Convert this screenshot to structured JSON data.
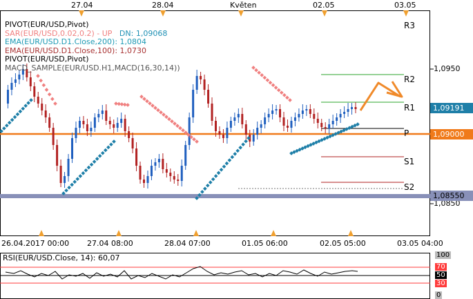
{
  "top_dates": [
    "27.04",
    "28.04",
    "Květen",
    "02.05",
    "03.05"
  ],
  "bottom_dates": [
    "26.04.2017 00:00",
    "27.04 08:00",
    "28.04 07:00",
    "01.05 06:00",
    "02.05 05:00",
    "03.05 04:00"
  ],
  "legend": [
    {
      "text": "PIVOT(EUR/USD,Pivot)",
      "color": "#000000"
    },
    {
      "text": "SAR(EUR/USD,0.02,0.2)  -  UP",
      "color": "#f08080",
      "extra": "DN: 1,09068",
      "extra_color": "#1e90b4"
    },
    {
      "text": "EMA(EUR/USD.D1.Close,200): 1,0804",
      "color": "#1e9ab4"
    },
    {
      "text": "EMA(EUR/USD.D1.Close,100): 1,0730",
      "color": "#a83232"
    },
    {
      "text": "PIVOT(EUR/USD,Pivot)",
      "color": "#000000"
    },
    {
      "text": "MACD_SAMPLE(EUR/USD.H1,MACD(16,30,14))",
      "color": "#555555"
    }
  ],
  "price_axis": {
    "label_1": "1,0950",
    "label_2": "1,0850"
  },
  "price_boxes": {
    "current": "1,09191",
    "pivot": "1,09000",
    "support": "1,08550"
  },
  "pivot_labels": {
    "r3": "R3",
    "r2": "R2",
    "r1": "R1",
    "p": "P",
    "s1": "S1",
    "s2": "S2"
  },
  "rsi": {
    "title": "RSI(EUR/USD.Close, 14): 60,07",
    "levels": [
      "100",
      "70",
      "50",
      "30",
      "0"
    ],
    "level_colors": {
      "70": "#ff3b3b",
      "50": "#000000",
      "30": "#ff3b3b"
    }
  },
  "colors": {
    "bull": "#1f5fbf",
    "bear": "#b22222",
    "sar_dn": "#f08080",
    "sar_up": "#1e7fa8",
    "pivot_line": "#f07a1a",
    "support_band": "#8890b8",
    "r_line": "#2ca52c",
    "s_line": "#b22222",
    "arrow": "#f08a2a"
  }
}
